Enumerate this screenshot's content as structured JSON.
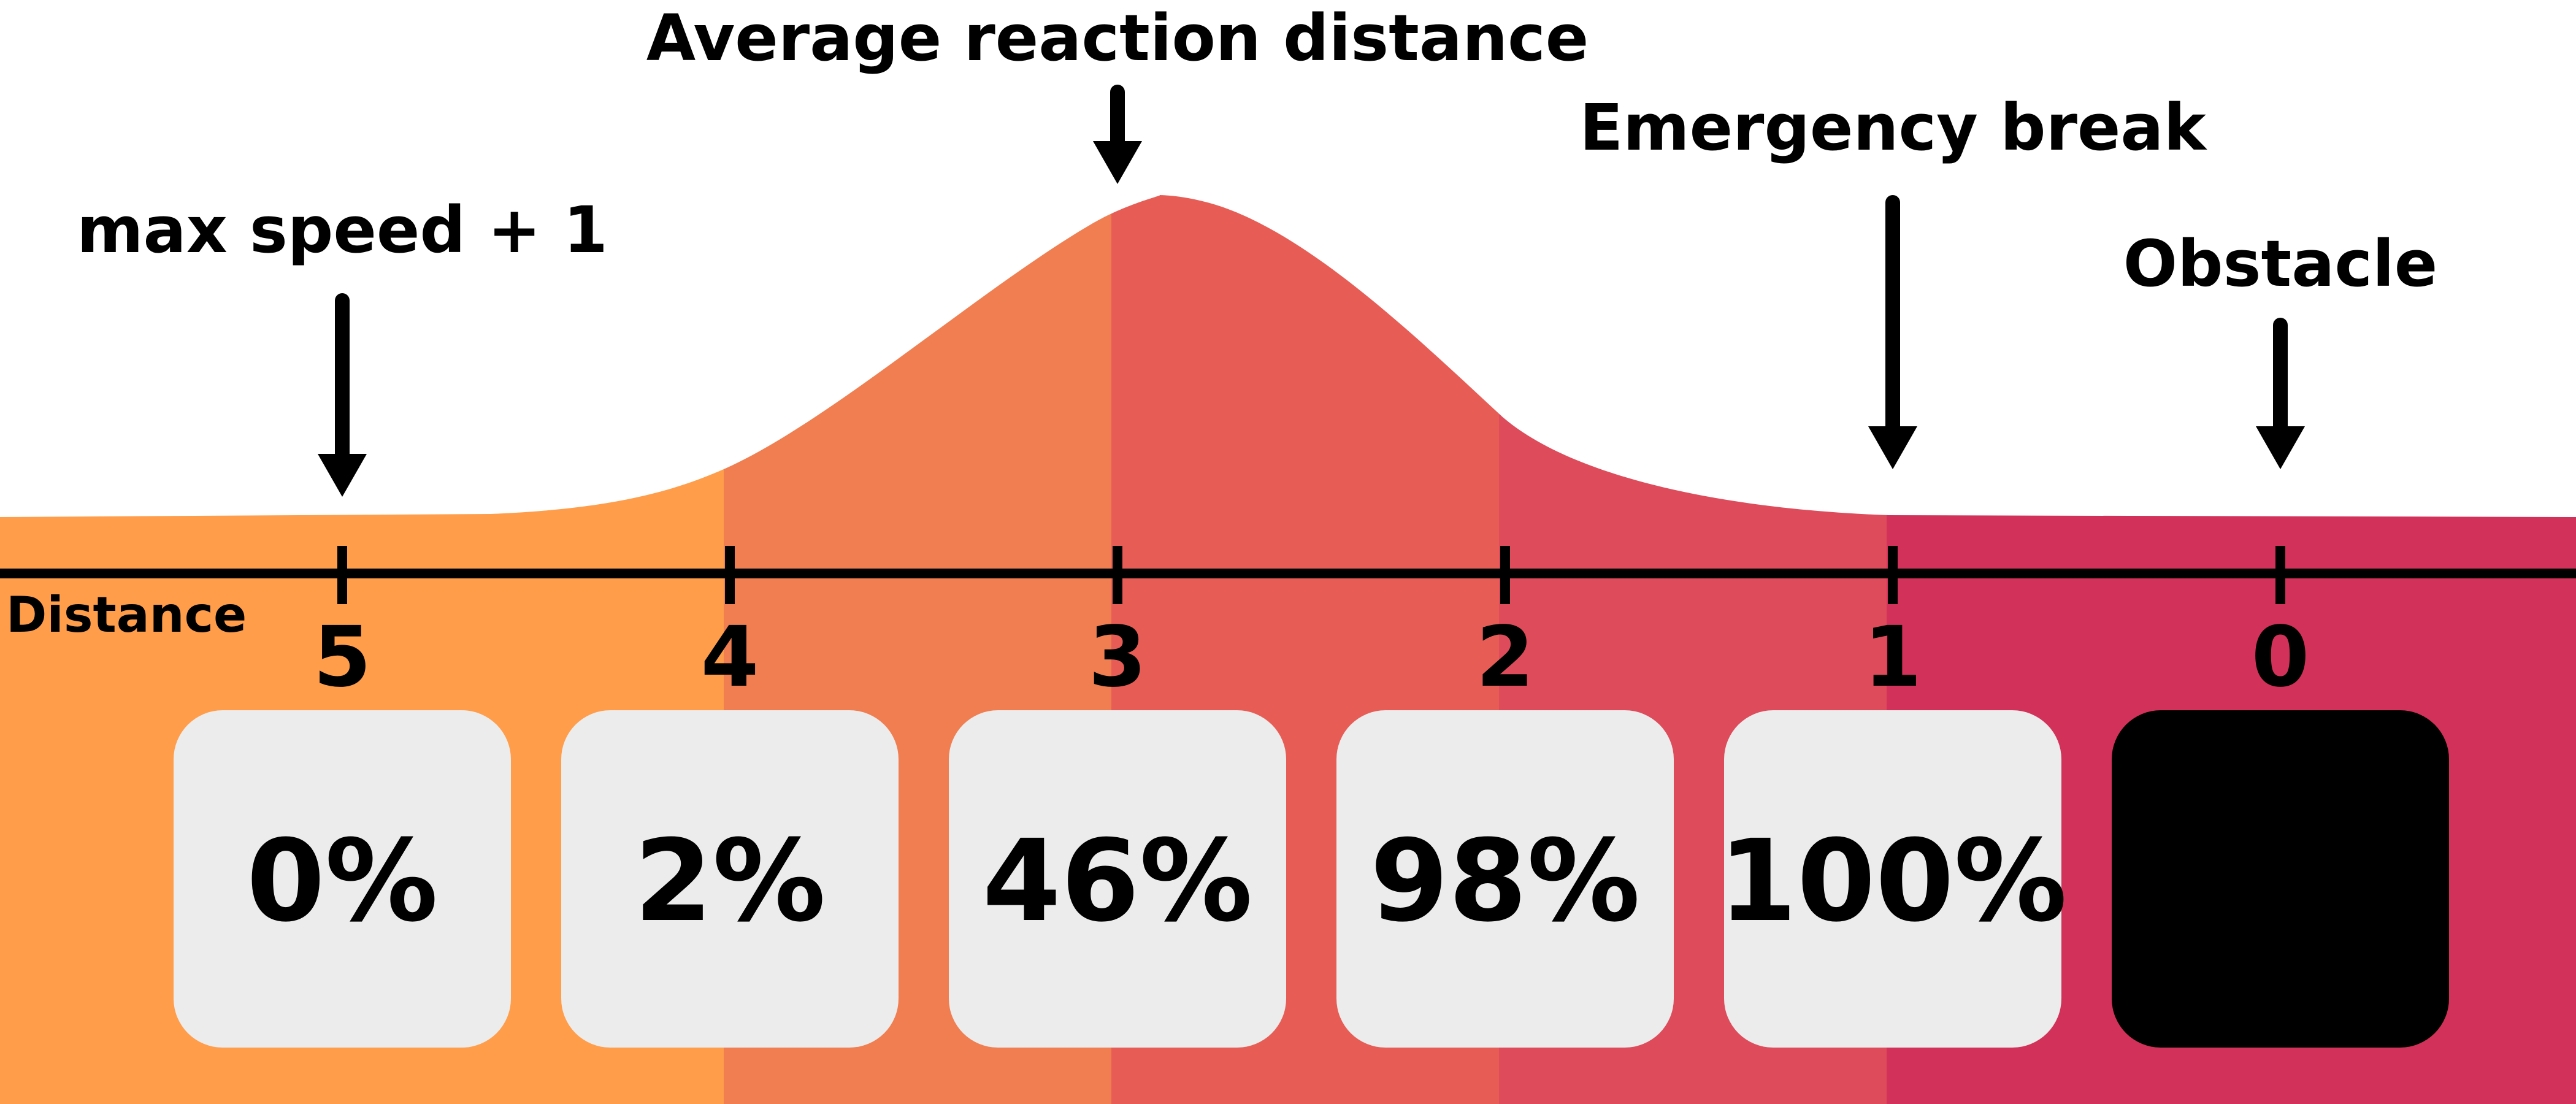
{
  "axis": {
    "title": "Distance",
    "ticks": [
      {
        "value": 5,
        "label": "5"
      },
      {
        "value": 4,
        "label": "4"
      },
      {
        "value": 3,
        "label": "3"
      },
      {
        "value": 2,
        "label": "2"
      },
      {
        "value": 1,
        "label": "1"
      },
      {
        "value": 0,
        "label": "0"
      }
    ]
  },
  "zones": [
    {
      "color": "#FF9D4A"
    },
    {
      "color": "#F07E50"
    },
    {
      "color": "#E75D55"
    },
    {
      "color": "#DE4B5A"
    },
    {
      "color": "#D23159"
    }
  ],
  "cells": [
    {
      "distance": 5,
      "label": "0%",
      "fill": "#ECECEC"
    },
    {
      "distance": 4,
      "label": "2%",
      "fill": "#ECECEC"
    },
    {
      "distance": 3,
      "label": "46%",
      "fill": "#ECECEC"
    },
    {
      "distance": 2,
      "label": "98%",
      "fill": "#ECECEC"
    },
    {
      "distance": 1,
      "label": "100%",
      "fill": "#ECECEC"
    },
    {
      "distance": 0,
      "label": "",
      "fill": "#000000"
    }
  ],
  "annotations": [
    {
      "distance": 5,
      "text": "max speed + 1"
    },
    {
      "distance": 3,
      "text": "Average reaction distance"
    },
    {
      "distance": 1,
      "text": "Emergency break"
    },
    {
      "distance": 0,
      "text": "Obstacle"
    }
  ],
  "curve": {
    "peak_distance": 3
  }
}
